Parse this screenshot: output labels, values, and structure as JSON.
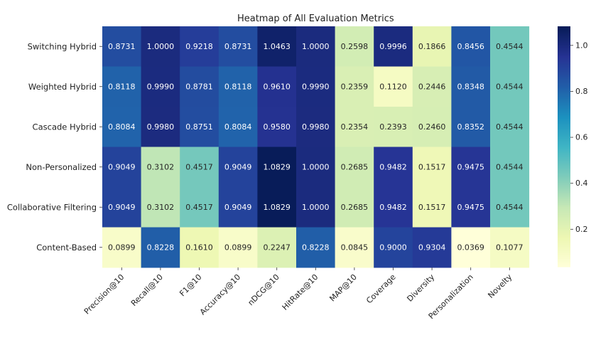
{
  "chart_data": {
    "type": "heatmap",
    "title": "Heatmap of All Evaluation Metrics",
    "columns": [
      "Precision@10",
      "Recall@10",
      "F1@10",
      "Accuracy@10",
      "nDCG@10",
      "HitRate@10",
      "MAP@10",
      "Coverage",
      "Diversity",
      "Personalization",
      "Novelty"
    ],
    "rows": [
      "Switching Hybrid",
      "Weighted Hybrid",
      "Cascade Hybrid",
      "Non-Personalized",
      "Collaborative Filtering",
      "Content-Based"
    ],
    "values": [
      [
        0.8731,
        1.0,
        0.9218,
        0.8731,
        1.0463,
        1.0,
        0.2598,
        0.9996,
        0.1866,
        0.8456,
        0.4544
      ],
      [
        0.8118,
        0.999,
        0.8781,
        0.8118,
        0.961,
        0.999,
        0.2359,
        0.112,
        0.2446,
        0.8348,
        0.4544
      ],
      [
        0.8084,
        0.998,
        0.8751,
        0.8084,
        0.958,
        0.998,
        0.2354,
        0.2393,
        0.246,
        0.8352,
        0.4544
      ],
      [
        0.9049,
        0.3102,
        0.4517,
        0.9049,
        1.0829,
        1.0,
        0.2685,
        0.9482,
        0.1517,
        0.9475,
        0.4544
      ],
      [
        0.9049,
        0.3102,
        0.4517,
        0.9049,
        1.0829,
        1.0,
        0.2685,
        0.9482,
        0.1517,
        0.9475,
        0.4544
      ],
      [
        0.0899,
        0.8228,
        0.161,
        0.0899,
        0.2247,
        0.8228,
        0.0845,
        0.9,
        0.9304,
        0.0369,
        0.1077
      ]
    ],
    "value_labels": [
      [
        "0.8731",
        "1.0000",
        "0.9218",
        "0.8731",
        "1.0463",
        "1.0000",
        "0.2598",
        "0.9996",
        "0.1866",
        "0.8456",
        "0.4544"
      ],
      [
        "0.8118",
        "0.9990",
        "0.8781",
        "0.8118",
        "0.9610",
        "0.9990",
        "0.2359",
        "0.1120",
        "0.2446",
        "0.8348",
        "0.4544"
      ],
      [
        "0.8084",
        "0.9980",
        "0.8751",
        "0.8084",
        "0.9580",
        "0.9980",
        "0.2354",
        "0.2393",
        "0.2460",
        "0.8352",
        "0.4544"
      ],
      [
        "0.9049",
        "0.3102",
        "0.4517",
        "0.9049",
        "1.0829",
        "1.0000",
        "0.2685",
        "0.9482",
        "0.1517",
        "0.9475",
        "0.4544"
      ],
      [
        "0.9049",
        "0.3102",
        "0.4517",
        "0.9049",
        "1.0829",
        "1.0000",
        "0.2685",
        "0.9482",
        "0.1517",
        "0.9475",
        "0.4544"
      ],
      [
        "0.0899",
        "0.8228",
        "0.1610",
        "0.0899",
        "0.2247",
        "0.8228",
        "0.0845",
        "0.9000",
        "0.9304",
        "0.0369",
        "0.1077"
      ]
    ],
    "colormap": "YlGnBu",
    "vmin": 0.0369,
    "vmax": 1.0829,
    "colorbar": {
      "ticks": [
        0.2,
        0.4,
        0.6,
        0.8,
        1.0
      ],
      "tick_labels": [
        "0.2",
        "0.4",
        "0.6",
        "0.8",
        "1.0"
      ],
      "placement": "right"
    },
    "annotations": true
  }
}
